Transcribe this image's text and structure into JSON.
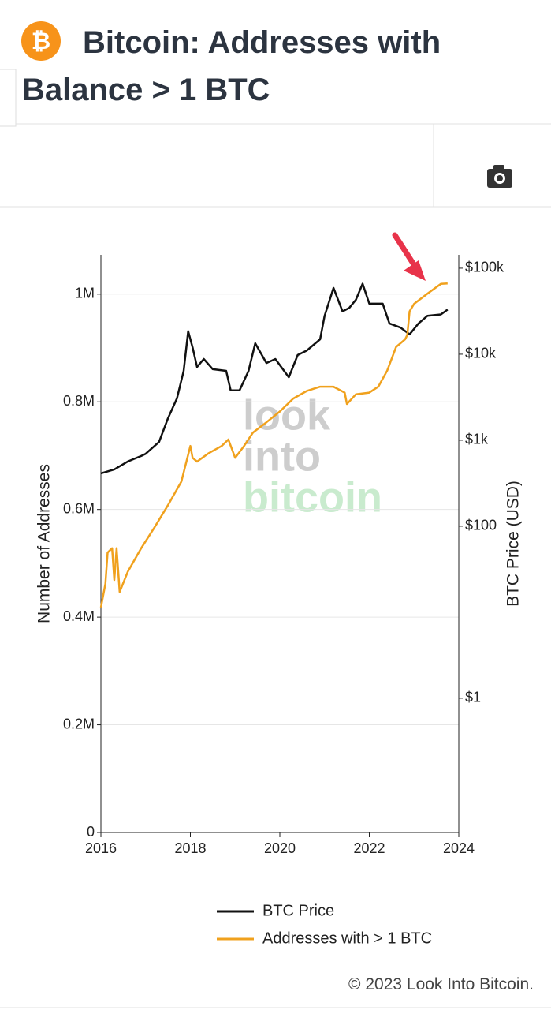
{
  "header": {
    "title": "Bitcoin: Addresses with Balance > 1 BTC"
  },
  "chart_data": {
    "type": "line",
    "watermark": [
      "look",
      "into",
      "bitcoin"
    ],
    "x_axis_log": false,
    "y_label": "Number of Addresses",
    "y2_label": "BTC Price (USD)",
    "y2_log": true,
    "grid": true,
    "xlim": [
      2016,
      2024
    ],
    "xticks": [
      2016,
      2018,
      2020,
      2022,
      2024
    ],
    "ylim": [
      0,
      1073000
    ],
    "yticks": [
      0,
      {
        "value": 200000,
        "label": "0.2M"
      },
      {
        "value": 400000,
        "label": "0.4M"
      },
      {
        "value": 600000,
        "label": "0.6M"
      },
      {
        "value": 800000,
        "label": "0.8M"
      },
      {
        "value": 1000000,
        "label": "1M"
      }
    ],
    "y2lim": [
      0.0275,
      143000
    ],
    "y2ticks": [
      {
        "value": 1,
        "label": "$1"
      },
      {
        "value": 100,
        "label": "$100"
      },
      {
        "value": 1000,
        "label": "$1k"
      },
      {
        "value": 10000,
        "label": "$10k"
      },
      {
        "value": 100000,
        "label": "$100k"
      }
    ],
    "series": [
      {
        "name": "BTC Price",
        "color": "#111111",
        "axis": "y2",
        "x": [
          2016.0,
          2016.3,
          2016.6,
          2016.9,
          2017.0,
          2017.3,
          2017.5,
          2017.7,
          2017.85,
          2017.95,
          2018.05,
          2018.15,
          2018.3,
          2018.5,
          2018.8,
          2018.9,
          2019.1,
          2019.3,
          2019.45,
          2019.7,
          2019.9,
          2020.2,
          2020.4,
          2020.6,
          2020.9,
          2021.0,
          2021.2,
          2021.4,
          2021.55,
          2021.7,
          2021.85,
          2022.0,
          2022.3,
          2022.45,
          2022.7,
          2022.9,
          2023.1,
          2023.3,
          2023.6,
          2023.75
        ],
        "values": [
          412,
          458,
          565,
          656,
          695,
          955,
          1800,
          3070,
          6400,
          18500,
          12000,
          7100,
          8800,
          6700,
          6400,
          3800,
          3800,
          6400,
          13400,
          7900,
          8800,
          5400,
          9800,
          11000,
          14900,
          28000,
          59000,
          31500,
          34500,
          43000,
          66000,
          38700,
          38700,
          22800,
          20400,
          17000,
          22800,
          28000,
          29000,
          33000
        ]
      },
      {
        "name": "Addresses with > 1 BTC",
        "color": "#f0a11d",
        "axis": "y",
        "x": [
          2016.0,
          2016.1,
          2016.15,
          2016.25,
          2016.3,
          2016.35,
          2016.42,
          2016.6,
          2016.9,
          2017.2,
          2017.5,
          2017.8,
          2018.0,
          2018.05,
          2018.15,
          2018.4,
          2018.7,
          2018.85,
          2019.0,
          2019.2,
          2019.4,
          2019.7,
          2020.0,
          2020.3,
          2020.6,
          2020.9,
          2021.2,
          2021.45,
          2021.5,
          2021.7,
          2022.0,
          2022.2,
          2022.4,
          2022.6,
          2022.8,
          2022.85,
          2022.9,
          2023.0,
          2023.3,
          2023.6,
          2023.75
        ],
        "values": [
          418000,
          462000,
          520000,
          528000,
          469000,
          528000,
          447000,
          484000,
          528000,
          567000,
          608000,
          652000,
          718000,
          696000,
          689000,
          704000,
          718000,
          730000,
          696000,
          718000,
          743000,
          762000,
          782000,
          806000,
          820000,
          828000,
          828000,
          817000,
          796000,
          814000,
          817000,
          828000,
          858000,
          902000,
          916000,
          924000,
          968000,
          982000,
          1001000,
          1019000,
          1020000
        ]
      }
    ]
  },
  "footer": {
    "copyright": "© 2023 Look Into Bitcoin."
  }
}
